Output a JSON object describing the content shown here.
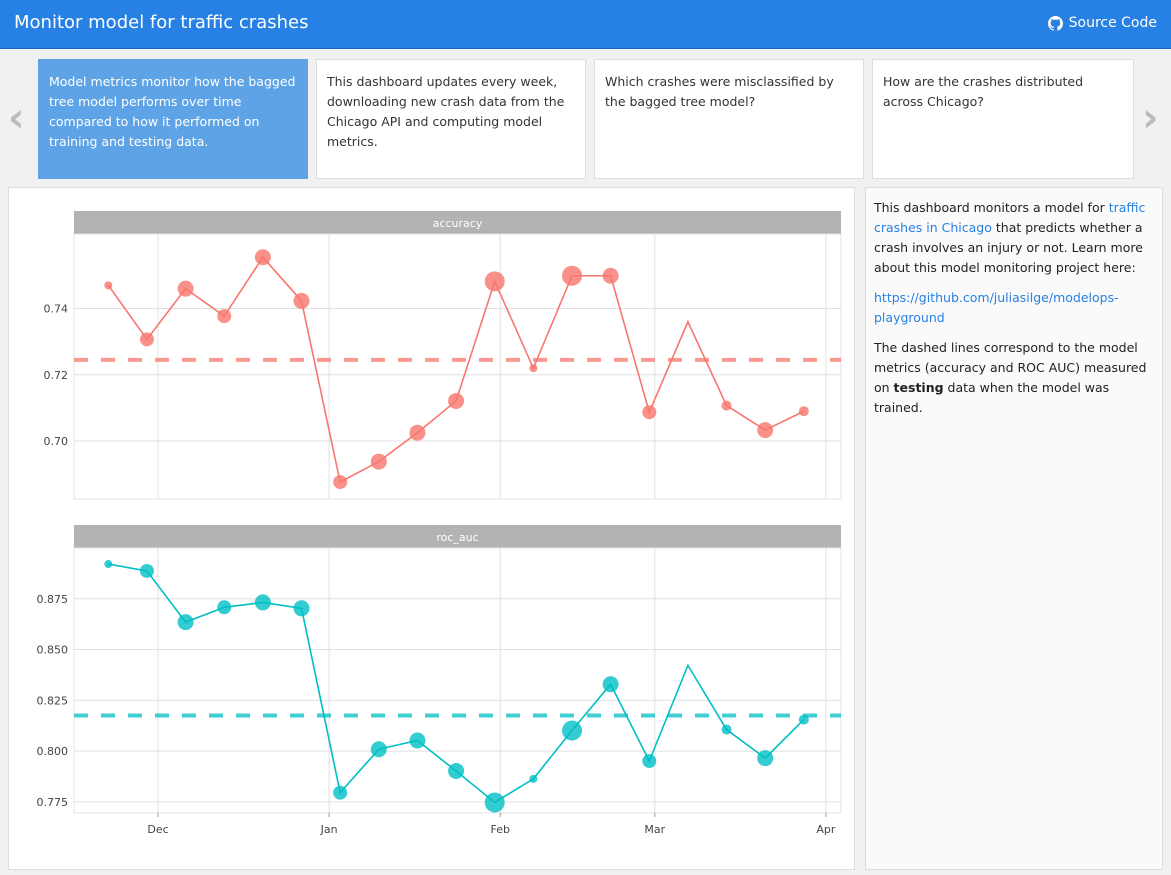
{
  "header": {
    "title": "Monitor model for traffic crashes",
    "source_label": "Source Code",
    "source_icon": "github-icon"
  },
  "carousel": {
    "prev_icon": "chevron-left-icon",
    "next_icon": "chevron-right-icon",
    "cards": [
      {
        "text": "Model metrics monitor how the bagged tree model performs over time compared to how it performed on training and testing data.",
        "active": true
      },
      {
        "text": "This dashboard updates every week, downloading new crash data from the Chicago API and computing model metrics.",
        "active": false
      },
      {
        "text": "Which crashes were misclassified by the bagged tree model?",
        "active": false
      },
      {
        "text": "How are the crashes distributed across Chicago?",
        "active": false
      }
    ]
  },
  "sidebar": {
    "p1_before": "This dashboard monitors a model for ",
    "p1_link": "traffic crashes in Chicago",
    "p1_after": " that predicts whether a crash involves an injury or not. Learn more about this model monitoring project here:",
    "p2_link": "https://github.com/juliasilge/modelops-playground",
    "p3_before": "The dashed lines correspond to the model metrics (accuracy and ROC AUC) measured on ",
    "p3_bold": "testing",
    "p3_after": " data when the model was trained."
  },
  "chart_data": [
    {
      "type": "scatter",
      "panel": "accuracy",
      "color": "#f8766d",
      "x": [
        "Nov 22",
        "Nov 29",
        "Dec 6",
        "Dec 13",
        "Dec 20",
        "Dec 27",
        "Jan 3",
        "Jan 10",
        "Jan 17",
        "Jan 24",
        "Jan 31",
        "Feb 7",
        "Feb 14",
        "Feb 21",
        "Feb 28",
        "Mar 7",
        "Mar 14",
        "Mar 21",
        "Mar 28"
      ],
      "y": [
        0.747,
        0.7307,
        0.746,
        0.7377,
        0.7555,
        0.7423,
        0.6876,
        0.6938,
        0.7025,
        0.7121,
        0.7482,
        0.722,
        0.7499,
        0.7499,
        0.7087,
        0.736,
        0.7107,
        0.7033,
        0.709
      ],
      "point_size": [
        4,
        7,
        8,
        7,
        8,
        8,
        7,
        8,
        8,
        8,
        10,
        4,
        10,
        8,
        7,
        0,
        5,
        8,
        5
      ],
      "reference_line": 0.7245,
      "yticks": [
        0.7,
        0.72,
        0.74
      ],
      "ytick_labels": [
        "0.70",
        "0.72",
        "0.74"
      ],
      "ylim": [
        0.6825,
        0.7625
      ]
    },
    {
      "type": "scatter",
      "panel": "roc_auc",
      "color": "#00bfc4",
      "x": [
        "Nov 22",
        "Nov 29",
        "Dec 6",
        "Dec 13",
        "Dec 20",
        "Dec 27",
        "Jan 3",
        "Jan 10",
        "Jan 17",
        "Jan 24",
        "Jan 31",
        "Feb 7",
        "Feb 14",
        "Feb 21",
        "Feb 28",
        "Mar 7",
        "Mar 14",
        "Mar 21",
        "Mar 28"
      ],
      "y": [
        0.8921,
        0.8887,
        0.8635,
        0.8708,
        0.8732,
        0.8703,
        0.7795,
        0.8009,
        0.8052,
        0.7902,
        0.7747,
        0.7863,
        0.8101,
        0.8329,
        0.7951,
        0.8422,
        0.8106,
        0.7965,
        0.8155
      ],
      "point_size": [
        4,
        7,
        8,
        7,
        8,
        8,
        7,
        8,
        8,
        8,
        10,
        4,
        10,
        8,
        7,
        0,
        5,
        8,
        5
      ],
      "reference_line": 0.8175,
      "yticks": [
        0.775,
        0.8,
        0.825,
        0.85,
        0.875
      ],
      "ytick_labels": [
        "0.775",
        "0.800",
        "0.825",
        "0.850",
        "0.875"
      ],
      "ylim": [
        0.7695,
        0.9
      ],
      "xticks": [
        "Dec",
        "Jan",
        "Feb",
        "Mar",
        "Apr"
      ]
    }
  ]
}
